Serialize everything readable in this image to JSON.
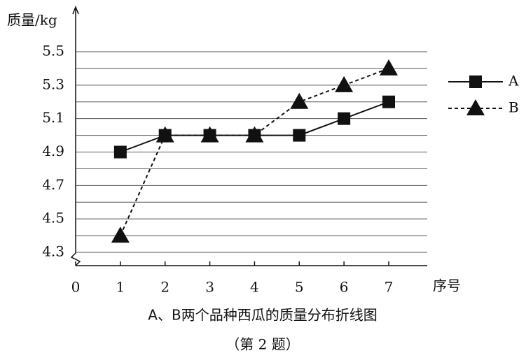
{
  "chart_data": {
    "type": "line",
    "title": "A、B两个品种西瓜的质量分布折线图",
    "subtitle": "（第 2 题）",
    "y_label": "质量/kg",
    "x_label": "序号",
    "x": [
      1,
      2,
      3,
      4,
      5,
      6,
      7
    ],
    "series": [
      {
        "name": "A",
        "color": "#111111",
        "marker": "square",
        "linestyle": "solid",
        "values": [
          4.9,
          5.0,
          5.0,
          5.0,
          5.0,
          5.1,
          5.2
        ]
      },
      {
        "name": "B",
        "color": "#111111",
        "marker": "triangle",
        "linestyle": "dashed",
        "values": [
          4.4,
          5.0,
          5.0,
          5.0,
          5.2,
          5.3,
          5.4
        ]
      }
    ],
    "xlim": [
      0,
      7
    ],
    "xticks": [
      0,
      1,
      2,
      3,
      4,
      5,
      6,
      7
    ],
    "ylim": [
      4.3,
      5.5
    ],
    "yticks": [
      4.3,
      4.5,
      4.7,
      4.9,
      5.1,
      5.3,
      5.5
    ],
    "minor_yticks": [
      4.4,
      4.6,
      4.8,
      5.0,
      5.2,
      5.4
    ],
    "grid": true,
    "legend": "right"
  }
}
